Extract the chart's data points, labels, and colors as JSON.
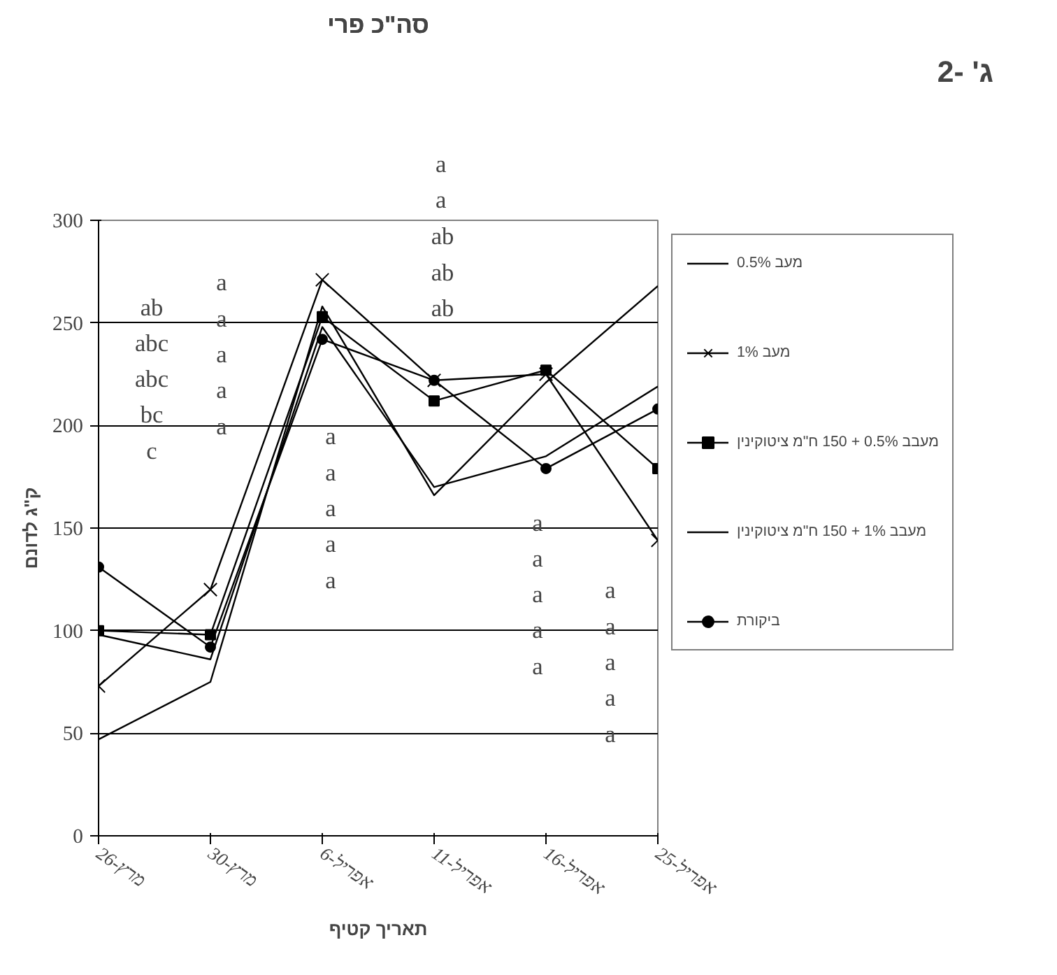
{
  "chart_data": {
    "type": "line",
    "title": "סה\"כ פרי",
    "xlabel": "תאריך קטיף",
    "ylabel": "ק\"ג לדונם",
    "categories": [
      "26-מרץ",
      "30-מרץ",
      "6-אפריל",
      "11-אפריל",
      "16-אפריל",
      "25-אפריל"
    ],
    "series": [
      {
        "name": "מעב 0.5%",
        "color": "#000000",
        "marker": "none",
        "values": [
          47,
          75,
          258,
          166,
          221,
          268
        ]
      },
      {
        "name": "מעב 1%",
        "color": "#000000",
        "marker": "cross",
        "values": [
          73,
          120,
          271,
          222,
          225,
          144
        ]
      },
      {
        "name": "מעבב 0.5% + 150 ח\"מ ציטוקינין",
        "color": "#000000",
        "marker": "square",
        "values": [
          100,
          98,
          253,
          212,
          227,
          179
        ]
      },
      {
        "name": "מעבב 1% + 150 ח\"מ ציטוקינין",
        "color": "#000000",
        "marker": "none",
        "values": [
          98,
          86,
          248,
          170,
          185,
          219
        ]
      },
      {
        "name": "ביקורת",
        "color": "#000000",
        "marker": "circle",
        "values": [
          131,
          92,
          242,
          222,
          179,
          208
        ]
      }
    ],
    "ylim": [
      0,
      300
    ],
    "yticks": [
      0,
      50,
      100,
      150,
      200,
      250,
      300
    ],
    "grid": "y",
    "legend": "right",
    "line_style": "solid",
    "annotations": [
      "ג' -2",
      "ab\nabc\nabc\nbc\nc",
      "a\na\na\na\na",
      "a\na\na\na\na",
      "a\na",
      "ab\nab\nab",
      "a\na\na\na\na",
      "a\na\na\na\na"
    ]
  }
}
